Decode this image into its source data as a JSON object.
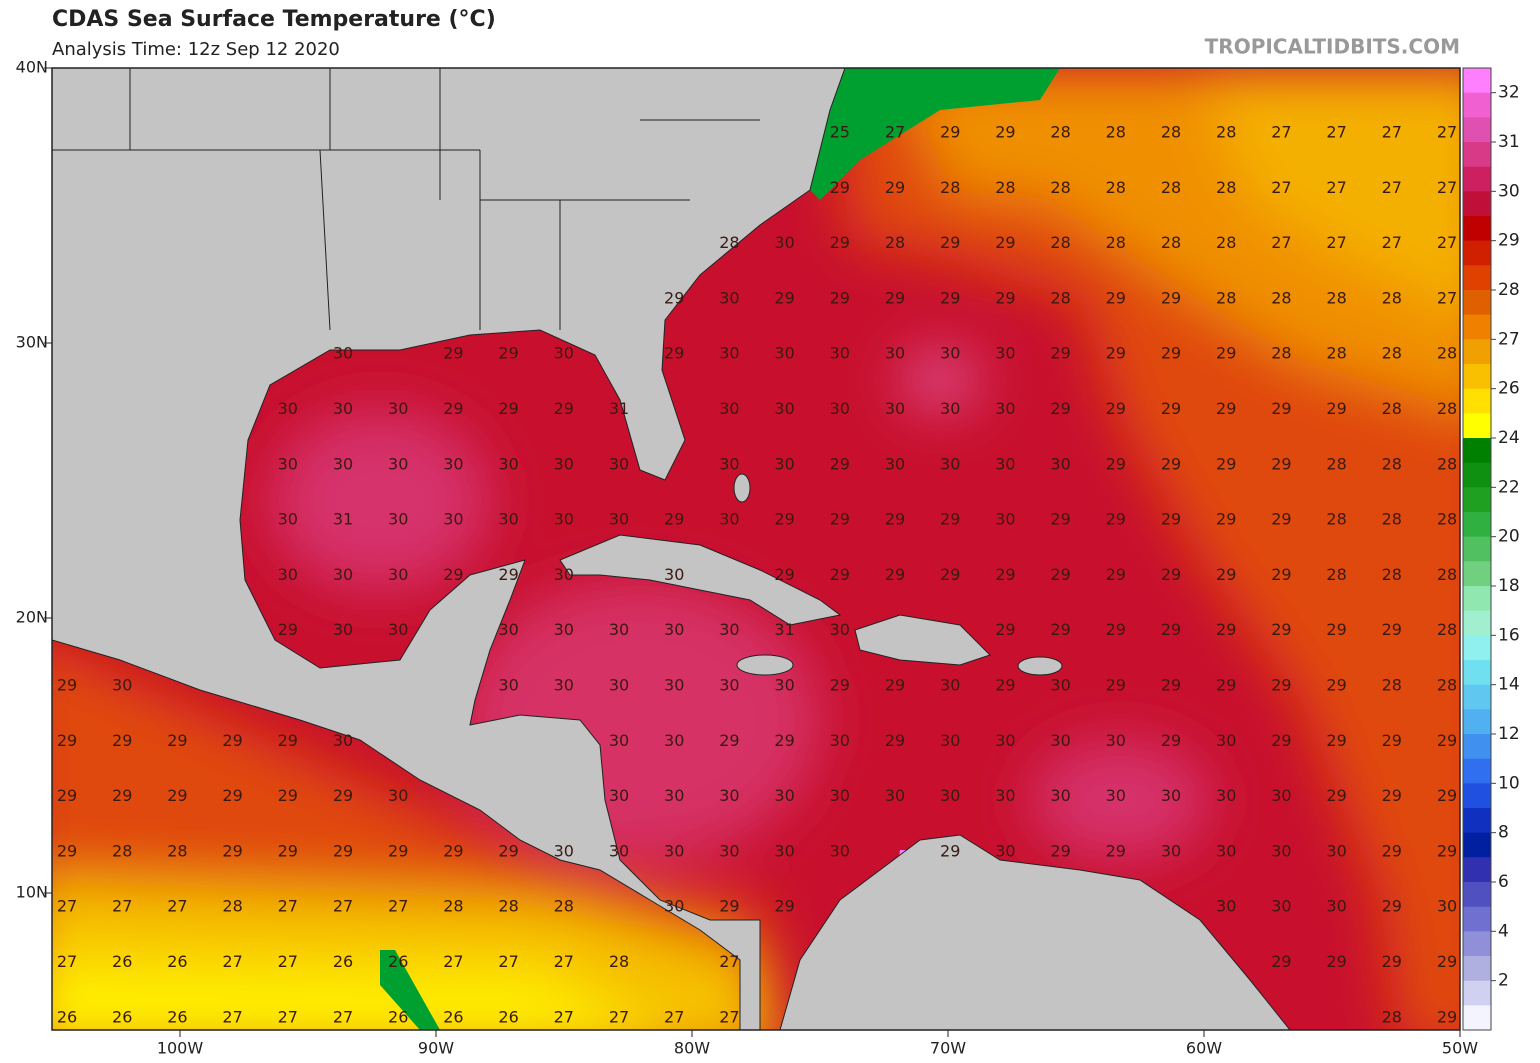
{
  "header": {
    "title": "CDAS Sea Surface Temperature (°C)",
    "subtitle": "Analysis Time: 12z Sep 12 2020",
    "credit": "TROPICALTIDBITS.COM"
  },
  "axes": {
    "lat_labels": [
      "40N",
      "30N",
      "20N",
      "10N"
    ],
    "lon_labels": [
      "100W",
      "90W",
      "80W",
      "70W",
      "60W",
      "50W"
    ]
  },
  "grid": {
    "rows": [
      [
        null,
        null,
        null,
        null,
        null,
        null,
        null,
        null,
        null,
        null,
        null,
        null,
        null,
        null,
        25,
        27,
        29,
        29,
        28,
        28,
        28,
        28,
        27,
        27,
        27,
        27
      ],
      [
        null,
        null,
        null,
        null,
        null,
        null,
        null,
        null,
        null,
        null,
        null,
        null,
        null,
        null,
        29,
        29,
        28,
        28,
        28,
        28,
        28,
        28,
        27,
        27,
        27,
        27
      ],
      [
        null,
        null,
        null,
        null,
        null,
        null,
        null,
        null,
        null,
        null,
        null,
        null,
        28,
        30,
        29,
        28,
        29,
        29,
        28,
        28,
        28,
        28,
        27,
        27,
        27,
        27
      ],
      [
        null,
        null,
        null,
        null,
        null,
        null,
        null,
        null,
        null,
        null,
        null,
        29,
        30,
        29,
        29,
        29,
        29,
        29,
        28,
        29,
        29,
        28,
        28,
        28,
        28,
        27
      ],
      [
        null,
        null,
        null,
        null,
        null,
        30,
        null,
        29,
        29,
        30,
        null,
        29,
        30,
        30,
        30,
        30,
        30,
        30,
        29,
        29,
        29,
        29,
        28,
        28,
        28,
        28
      ],
      [
        null,
        null,
        null,
        null,
        30,
        30,
        30,
        29,
        29,
        29,
        31,
        null,
        30,
        30,
        30,
        30,
        30,
        30,
        29,
        29,
        29,
        29,
        29,
        29,
        28,
        28
      ],
      [
        null,
        null,
        null,
        null,
        30,
        30,
        30,
        30,
        30,
        30,
        30,
        null,
        30,
        30,
        29,
        30,
        30,
        30,
        30,
        29,
        29,
        29,
        29,
        28,
        28,
        28
      ],
      [
        null,
        null,
        null,
        null,
        30,
        31,
        30,
        30,
        30,
        30,
        30,
        29,
        30,
        29,
        29,
        29,
        29,
        30,
        29,
        29,
        29,
        29,
        29,
        28,
        28,
        28
      ],
      [
        null,
        null,
        null,
        null,
        30,
        30,
        30,
        29,
        29,
        30,
        null,
        30,
        null,
        29,
        29,
        29,
        29,
        29,
        29,
        29,
        29,
        29,
        29,
        28,
        28,
        28
      ],
      [
        null,
        null,
        null,
        null,
        29,
        30,
        30,
        null,
        30,
        30,
        30,
        30,
        30,
        31,
        30,
        null,
        null,
        29,
        29,
        29,
        29,
        29,
        29,
        29,
        29,
        28
      ],
      [
        29,
        30,
        null,
        null,
        null,
        null,
        null,
        null,
        30,
        30,
        30,
        30,
        30,
        30,
        29,
        29,
        30,
        29,
        30,
        29,
        29,
        29,
        29,
        29,
        28,
        28
      ],
      [
        29,
        29,
        29,
        29,
        29,
        30,
        null,
        null,
        null,
        null,
        30,
        30,
        29,
        29,
        30,
        29,
        30,
        30,
        30,
        30,
        29,
        30,
        29,
        29,
        29,
        29
      ],
      [
        29,
        29,
        29,
        29,
        29,
        29,
        30,
        null,
        null,
        null,
        30,
        30,
        30,
        30,
        30,
        30,
        30,
        30,
        30,
        30,
        30,
        30,
        30,
        29,
        29,
        29
      ],
      [
        29,
        28,
        28,
        29,
        29,
        29,
        29,
        29,
        29,
        30,
        30,
        30,
        30,
        30,
        30,
        null,
        29,
        30,
        29,
        29,
        30,
        30,
        30,
        30,
        29,
        29
      ],
      [
        27,
        27,
        27,
        28,
        27,
        27,
        27,
        28,
        28,
        28,
        null,
        30,
        29,
        29,
        null,
        null,
        null,
        null,
        null,
        null,
        null,
        30,
        30,
        30,
        29,
        30
      ],
      [
        27,
        26,
        26,
        27,
        27,
        26,
        26,
        27,
        27,
        27,
        28,
        null,
        27,
        null,
        null,
        null,
        null,
        null,
        null,
        null,
        null,
        null,
        29,
        29,
        29,
        29
      ],
      [
        26,
        26,
        26,
        27,
        27,
        27,
        26,
        26,
        26,
        27,
        27,
        27,
        27,
        null,
        null,
        null,
        null,
        null,
        null,
        null,
        null,
        null,
        null,
        null,
        28,
        29
      ]
    ]
  },
  "colorbar": {
    "labels": [
      32,
      31,
      30,
      29,
      28,
      27,
      26,
      24,
      22,
      20,
      18,
      16,
      14,
      12,
      10,
      8,
      6,
      4,
      2
    ],
    "colors": [
      "#ff80ff",
      "#f060d0",
      "#e050b0",
      "#d83a88",
      "#cc2060",
      "#c0103a",
      "#c00000",
      "#d02000",
      "#e04000",
      "#e06000",
      "#f08000",
      "#f0a000",
      "#f8c000",
      "#ffe000",
      "#ffff00",
      "#008000",
      "#109010",
      "#20a020",
      "#30b040",
      "#50c060",
      "#70d080",
      "#90e8b0",
      "#a0f0d0",
      "#90f0f0",
      "#70e0f0",
      "#60c8f0",
      "#50b0f0",
      "#4090f0",
      "#3070f0",
      "#2050e0",
      "#1030c0",
      "#0020a0",
      "#3030b0",
      "#5050c0",
      "#7070d0",
      "#9090d8",
      "#b0b0e0",
      "#d0d0f0",
      "#f4f4ff"
    ]
  }
}
